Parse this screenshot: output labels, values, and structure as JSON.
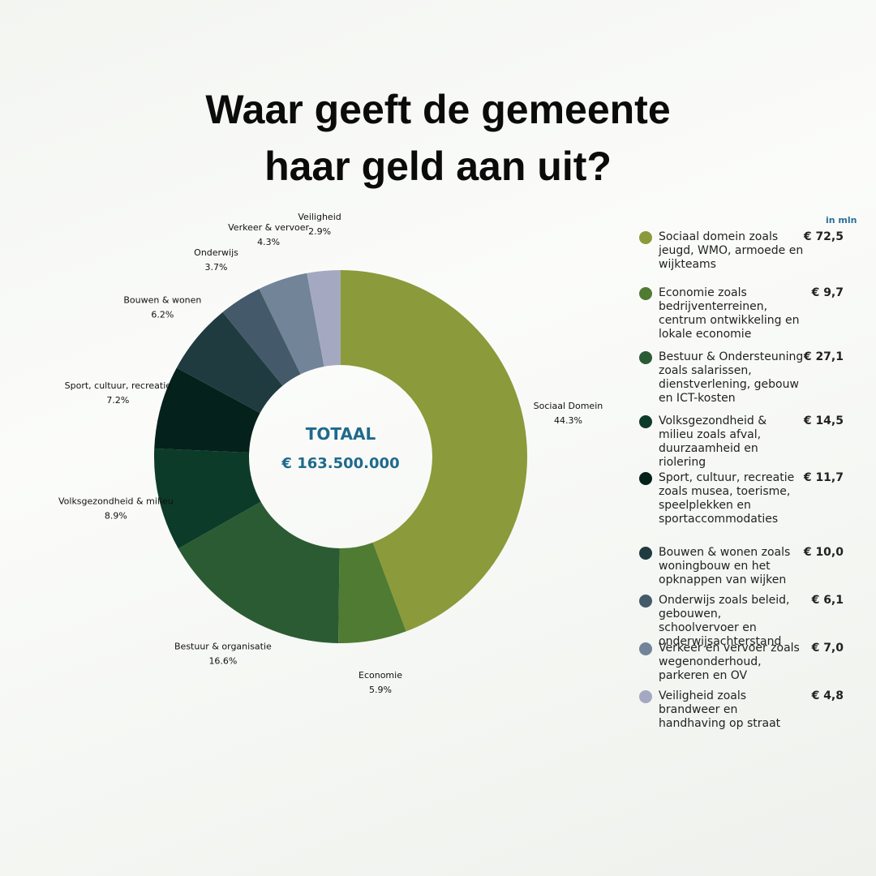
{
  "chart_data": {
    "type": "donut",
    "title": "Waar geeft de gemeente haar geld aan uit?",
    "center_title": "TOTAAL",
    "center_value": "€ 163.500.000",
    "categories": [
      "Sociaal Domein",
      "Economie",
      "Bestuur & organisatie",
      "Volksgezondheid & milieu",
      "Sport, cultuur, recreatie",
      "Bouwen & wonen",
      "Onderwijs",
      "Verkeer & vervoer",
      "Veiligheid"
    ],
    "values": [
      44.3,
      5.9,
      16.6,
      8.9,
      7.2,
      6.2,
      3.7,
      4.3,
      2.9
    ],
    "value_labels": [
      "44.3%",
      "5.9%",
      "16.6%",
      "8.9%",
      "7.2%",
      "6.2%",
      "3.7%",
      "4.3%",
      "2.9%"
    ],
    "colors": [
      "#8b9a3a",
      "#4f7b33",
      "#2b5b33",
      "#0d3b29",
      "#05211b",
      "#1f3b3f",
      "#44596a",
      "#718498",
      "#a4a9c1"
    ],
    "legend": {
      "unit": "in mln",
      "items": [
        {
          "label": "Sociaal domein zoals jeugd, WMO, armoede en wijkteams",
          "amount": "€ 72,5"
        },
        {
          "label": "Economie zoals bedrijventerreinen, centrum ontwikkeling en lokale economie",
          "amount": "€ 9,7"
        },
        {
          "label": "Bestuur & Ondersteuning zoals salarissen, dienstverlening, gebouw en ICT-kosten",
          "amount": "€ 27,1"
        },
        {
          "label": "Volksgezondheid & milieu zoals afval, duurzaamheid en riolering",
          "amount": "€ 14,5"
        },
        {
          "label": "Sport, cultuur, recreatie zoals musea, toerisme, speelplekken en sportaccommodaties",
          "amount": "€ 11,7"
        },
        {
          "label": "Bouwen & wonen zoals woningbouw en het opknappen van wijken",
          "amount": "€ 10,0"
        },
        {
          "label": "Onderwijs zoals beleid, gebouwen, schoolvervoer en onderwijsachterstand",
          "amount": "€ 6,1"
        },
        {
          "label": "Verkeer en vervoer zoals wegenonderhoud, parkeren en OV",
          "amount": "€ 7,0"
        },
        {
          "label": "Veiligheid zoals brandweer en handhaving op straat",
          "amount": "€ 4,8"
        }
      ]
    }
  }
}
